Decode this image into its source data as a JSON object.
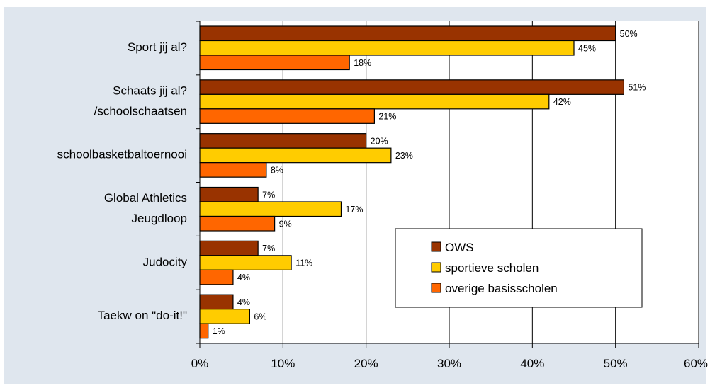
{
  "chart_data": {
    "type": "bar",
    "orientation": "horizontal",
    "categories": [
      [
        "Sport jij al?"
      ],
      [
        "Schaats jij al?",
        "/schoolschaatsen"
      ],
      [
        "schoolbasketbaltoernooi"
      ],
      [
        "Global Athletics",
        "Jeugdloop"
      ],
      [
        "Judocity"
      ],
      [
        "Taekw on \"do-it!\""
      ]
    ],
    "series": [
      {
        "name": "OWS",
        "color": "#993300",
        "values": [
          50,
          51,
          20,
          7,
          7,
          4
        ],
        "labels": [
          "50%",
          "51%",
          "20%",
          "7%",
          "7%",
          "4%"
        ]
      },
      {
        "name": "sportieve scholen",
        "color": "#ffcc00",
        "values": [
          45,
          42,
          23,
          17,
          11,
          6
        ],
        "labels": [
          "45%",
          "42%",
          "23%",
          "17%",
          "11%",
          "6%"
        ]
      },
      {
        "name": "overige basisscholen",
        "color": "#ff6600",
        "values": [
          18,
          21,
          8,
          9,
          4,
          1
        ],
        "labels": [
          "18%",
          "21%",
          "8%",
          "9%",
          "4%",
          "1%"
        ]
      }
    ],
    "xlim": [
      0,
      60
    ],
    "xticks": [
      "0%",
      "10%",
      "20%",
      "30%",
      "40%",
      "50%",
      "60%"
    ],
    "grid": true,
    "legend_position": "lower-right",
    "colors": {
      "plot_background": "#ffffff",
      "chart_background": "#dfe6ee",
      "gridline": "#000000"
    }
  }
}
